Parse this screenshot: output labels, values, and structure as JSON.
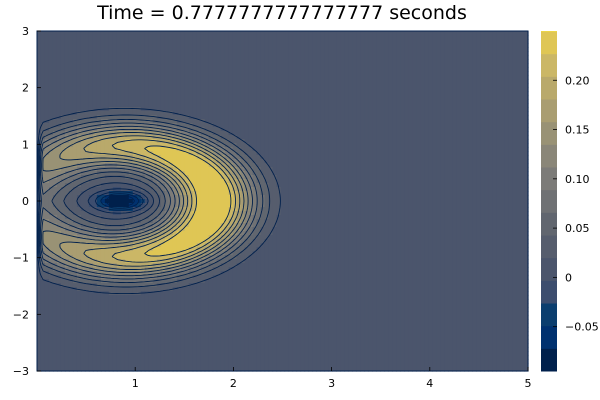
{
  "chart_data": {
    "type": "contour",
    "title": "Time = 0.7777777777777777 seconds",
    "xlabel": "",
    "ylabel": "",
    "xlim": [
      0,
      5
    ],
    "ylim": [
      -3,
      3
    ],
    "xticks": [
      1,
      2,
      3,
      4,
      5
    ],
    "xtick_labels": [
      "1",
      "2",
      "3",
      "4",
      "5"
    ],
    "yticks": [
      -3,
      -2,
      -1,
      0,
      1,
      2,
      3
    ],
    "ytick_labels": [
      "−3",
      "−2",
      "−1",
      "0",
      "1",
      "2",
      "3"
    ],
    "colorbar": {
      "range": [
        -0.095,
        0.25
      ],
      "ticks": [
        -0.05,
        0,
        0.05,
        0.1,
        0.15,
        0.2
      ],
      "tick_labels": [
        "−0.05",
        "0",
        "0.05",
        "0.10",
        "0.15",
        "0.20"
      ],
      "colormap": "cividis",
      "levels": [
        -0.095,
        -0.072,
        -0.049,
        -0.026,
        -0.003,
        0.02,
        0.043,
        0.066,
        0.089,
        0.112,
        0.135,
        0.158,
        0.181,
        0.204,
        0.227,
        0.25
      ],
      "colors": [
        "#00204c",
        "#00316f",
        "#0b3e6e",
        "#3c4d6e",
        "#4b556c",
        "#565d6d",
        "#61666f",
        "#6f7174",
        "#7c7b78",
        "#8a8678",
        "#999275",
        "#a99d71",
        "#b9a96b",
        "#cbb766",
        "#dfc655",
        "#fae43d"
      ]
    },
    "background_value": 0.0,
    "grid": false,
    "legend": "colorbar-right",
    "field_description": "single positive crescent (max ~0.25) centered near x=1.8, y=0 opening toward negative x, small negative well (min ~-0.095) near x=0.85, y=0"
  }
}
